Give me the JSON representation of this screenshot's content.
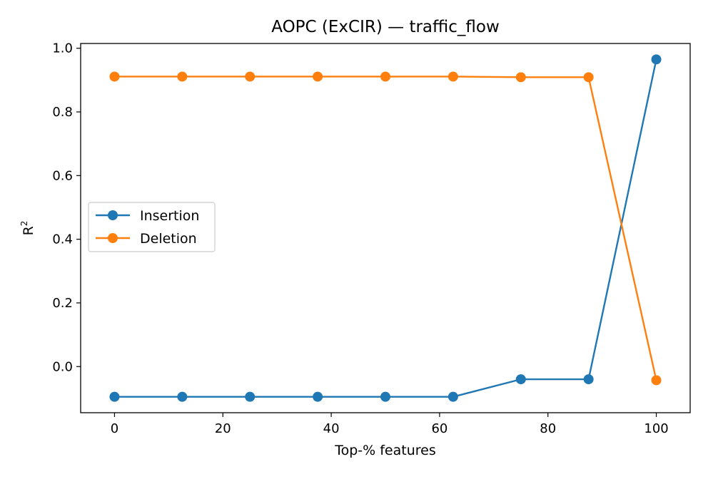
{
  "chart_data": {
    "type": "line",
    "title": "AOPC (ExCIR) — traffic_flow",
    "xlabel": "Top-% features",
    "ylabel": "R",
    "ylabel_superscript": "2",
    "xlim": [
      -6.25,
      106.25
    ],
    "ylim": [
      -0.145,
      1.015
    ],
    "xticks": [
      0,
      20,
      40,
      60,
      80,
      100
    ],
    "yticks": [
      0.0,
      0.2,
      0.4,
      0.6,
      0.8,
      1.0
    ],
    "xtick_labels": [
      "0",
      "20",
      "40",
      "60",
      "80",
      "100"
    ],
    "ytick_labels": [
      "0.0",
      "0.2",
      "0.4",
      "0.6",
      "0.8",
      "1.0"
    ],
    "grid": false,
    "legend": "center-left",
    "x": [
      0,
      12.5,
      25,
      37.5,
      50,
      62.5,
      75,
      87.5,
      100
    ],
    "series": [
      {
        "name": "Insertion",
        "color": "#1f77b4",
        "values": [
          -0.095,
          -0.095,
          -0.095,
          -0.095,
          -0.095,
          -0.095,
          -0.04,
          -0.04,
          0.965
        ]
      },
      {
        "name": "Deletion",
        "color": "#ff7f0e",
        "values": [
          0.911,
          0.911,
          0.911,
          0.911,
          0.911,
          0.911,
          0.909,
          0.909,
          -0.043
        ]
      }
    ]
  }
}
